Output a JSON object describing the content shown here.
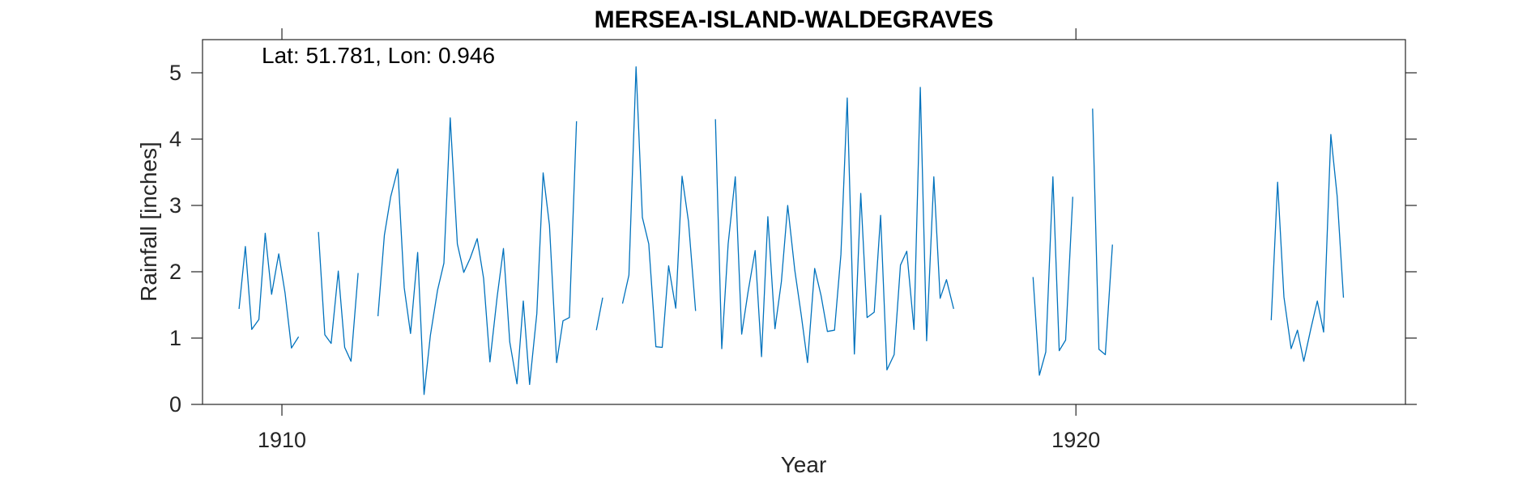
{
  "chart_data": {
    "type": "line",
    "title": "MERSEA-ISLAND-WALDEGRAVES",
    "annotation": "Lat: 51.781, Lon: 0.946",
    "xlabel": "Year",
    "ylabel": "Rainfall [inches]",
    "xlim": [
      1909.0,
      1924.15
    ],
    "ylim": [
      0,
      5.5
    ],
    "xticks": [
      1910,
      1920
    ],
    "xtick_labels": [
      "1910",
      "1920"
    ],
    "yticks": [
      0,
      1,
      2,
      3,
      4,
      5
    ],
    "ytick_labels": [
      "0",
      "1",
      "2",
      "3",
      "4",
      "5"
    ],
    "line_color": "#0072bd",
    "grid": false,
    "series": [
      {
        "segments": [
          [
            [
              1909.46,
              1.44
            ],
            [
              1909.54,
              2.38
            ],
            [
              1909.62,
              1.13
            ],
            [
              1909.71,
              1.28
            ],
            [
              1909.79,
              2.58
            ],
            [
              1909.87,
              1.66
            ],
            [
              1909.96,
              2.27
            ],
            [
              1910.04,
              1.68
            ],
            [
              1910.12,
              0.85
            ],
            [
              1910.21,
              1.02
            ]
          ],
          [
            [
              1910.46,
              2.6
            ],
            [
              1910.54,
              1.05
            ],
            [
              1910.62,
              0.92
            ],
            [
              1910.71,
              2.01
            ],
            [
              1910.79,
              0.86
            ],
            [
              1910.87,
              0.65
            ],
            [
              1910.96,
              1.98
            ]
          ],
          [
            [
              1911.21,
              1.33
            ],
            [
              1911.29,
              2.55
            ],
            [
              1911.37,
              3.13
            ],
            [
              1911.46,
              3.55
            ],
            [
              1911.54,
              1.76
            ],
            [
              1911.62,
              1.07
            ],
            [
              1911.71,
              2.29
            ],
            [
              1911.79,
              0.15
            ],
            [
              1911.87,
              1.04
            ],
            [
              1911.96,
              1.72
            ],
            [
              1912.04,
              2.13
            ],
            [
              1912.12,
              4.32
            ],
            [
              1912.21,
              2.42
            ],
            [
              1912.29,
              1.99
            ],
            [
              1912.37,
              2.2
            ],
            [
              1912.46,
              2.5
            ],
            [
              1912.54,
              1.9
            ],
            [
              1912.62,
              0.64
            ],
            [
              1912.71,
              1.62
            ],
            [
              1912.79,
              2.35
            ],
            [
              1912.87,
              0.94
            ],
            [
              1912.96,
              0.31
            ],
            [
              1913.04,
              1.56
            ],
            [
              1913.12,
              0.3
            ],
            [
              1913.21,
              1.37
            ],
            [
              1913.29,
              3.49
            ],
            [
              1913.37,
              2.7
            ],
            [
              1913.46,
              0.63
            ],
            [
              1913.54,
              1.26
            ],
            [
              1913.62,
              1.31
            ],
            [
              1913.71,
              4.27
            ]
          ],
          [
            [
              1913.96,
              1.12
            ],
            [
              1914.04,
              1.61
            ]
          ],
          [
            [
              1914.29,
              1.52
            ],
            [
              1914.37,
              1.95
            ],
            [
              1914.46,
              5.09
            ],
            [
              1914.54,
              2.82
            ],
            [
              1914.62,
              2.42
            ],
            [
              1914.71,
              0.87
            ],
            [
              1914.79,
              0.86
            ],
            [
              1914.87,
              2.09
            ],
            [
              1914.96,
              1.45
            ],
            [
              1915.04,
              3.44
            ],
            [
              1915.12,
              2.76
            ],
            [
              1915.21,
              1.41
            ]
          ],
          [
            [
              1915.46,
              4.3
            ],
            [
              1915.54,
              0.84
            ],
            [
              1915.62,
              2.42
            ],
            [
              1915.71,
              3.43
            ],
            [
              1915.79,
              1.06
            ],
            [
              1915.87,
              1.69
            ],
            [
              1915.96,
              2.32
            ],
            [
              1916.04,
              0.72
            ],
            [
              1916.12,
              2.83
            ],
            [
              1916.21,
              1.14
            ],
            [
              1916.29,
              1.85
            ],
            [
              1916.37,
              3.0
            ],
            [
              1916.46,
              2.02
            ],
            [
              1916.54,
              1.35
            ],
            [
              1916.62,
              0.63
            ],
            [
              1916.71,
              2.05
            ],
            [
              1916.79,
              1.64
            ],
            [
              1916.87,
              1.1
            ],
            [
              1916.96,
              1.12
            ],
            [
              1917.04,
              2.26
            ],
            [
              1917.12,
              4.62
            ],
            [
              1917.21,
              0.76
            ],
            [
              1917.29,
              3.18
            ],
            [
              1917.37,
              1.31
            ],
            [
              1917.46,
              1.39
            ],
            [
              1917.54,
              2.85
            ],
            [
              1917.62,
              0.52
            ],
            [
              1917.71,
              0.75
            ],
            [
              1917.79,
              2.1
            ],
            [
              1917.87,
              2.31
            ],
            [
              1917.96,
              1.13
            ],
            [
              1918.04,
              4.78
            ],
            [
              1918.12,
              0.96
            ],
            [
              1918.21,
              3.43
            ],
            [
              1918.29,
              1.6
            ],
            [
              1918.37,
              1.88
            ],
            [
              1918.46,
              1.44
            ]
          ],
          [
            [
              1919.46,
              1.92
            ],
            [
              1919.54,
              0.44
            ],
            [
              1919.62,
              0.79
            ],
            [
              1919.71,
              3.43
            ],
            [
              1919.79,
              0.81
            ],
            [
              1919.87,
              0.97
            ],
            [
              1919.96,
              3.13
            ]
          ],
          [
            [
              1920.21,
              4.46
            ],
            [
              1920.29,
              0.83
            ],
            [
              1920.37,
              0.75
            ],
            [
              1920.46,
              2.41
            ]
          ],
          [
            [
              1922.46,
              1.27
            ],
            [
              1922.54,
              3.35
            ],
            [
              1922.62,
              1.62
            ],
            [
              1922.71,
              0.84
            ],
            [
              1922.79,
              1.12
            ],
            [
              1922.87,
              0.65
            ],
            [
              1922.96,
              1.15
            ],
            [
              1923.04,
              1.56
            ],
            [
              1923.12,
              1.09
            ],
            [
              1923.21,
              4.07
            ],
            [
              1923.29,
              3.14
            ],
            [
              1923.37,
              1.61
            ]
          ]
        ]
      }
    ]
  }
}
